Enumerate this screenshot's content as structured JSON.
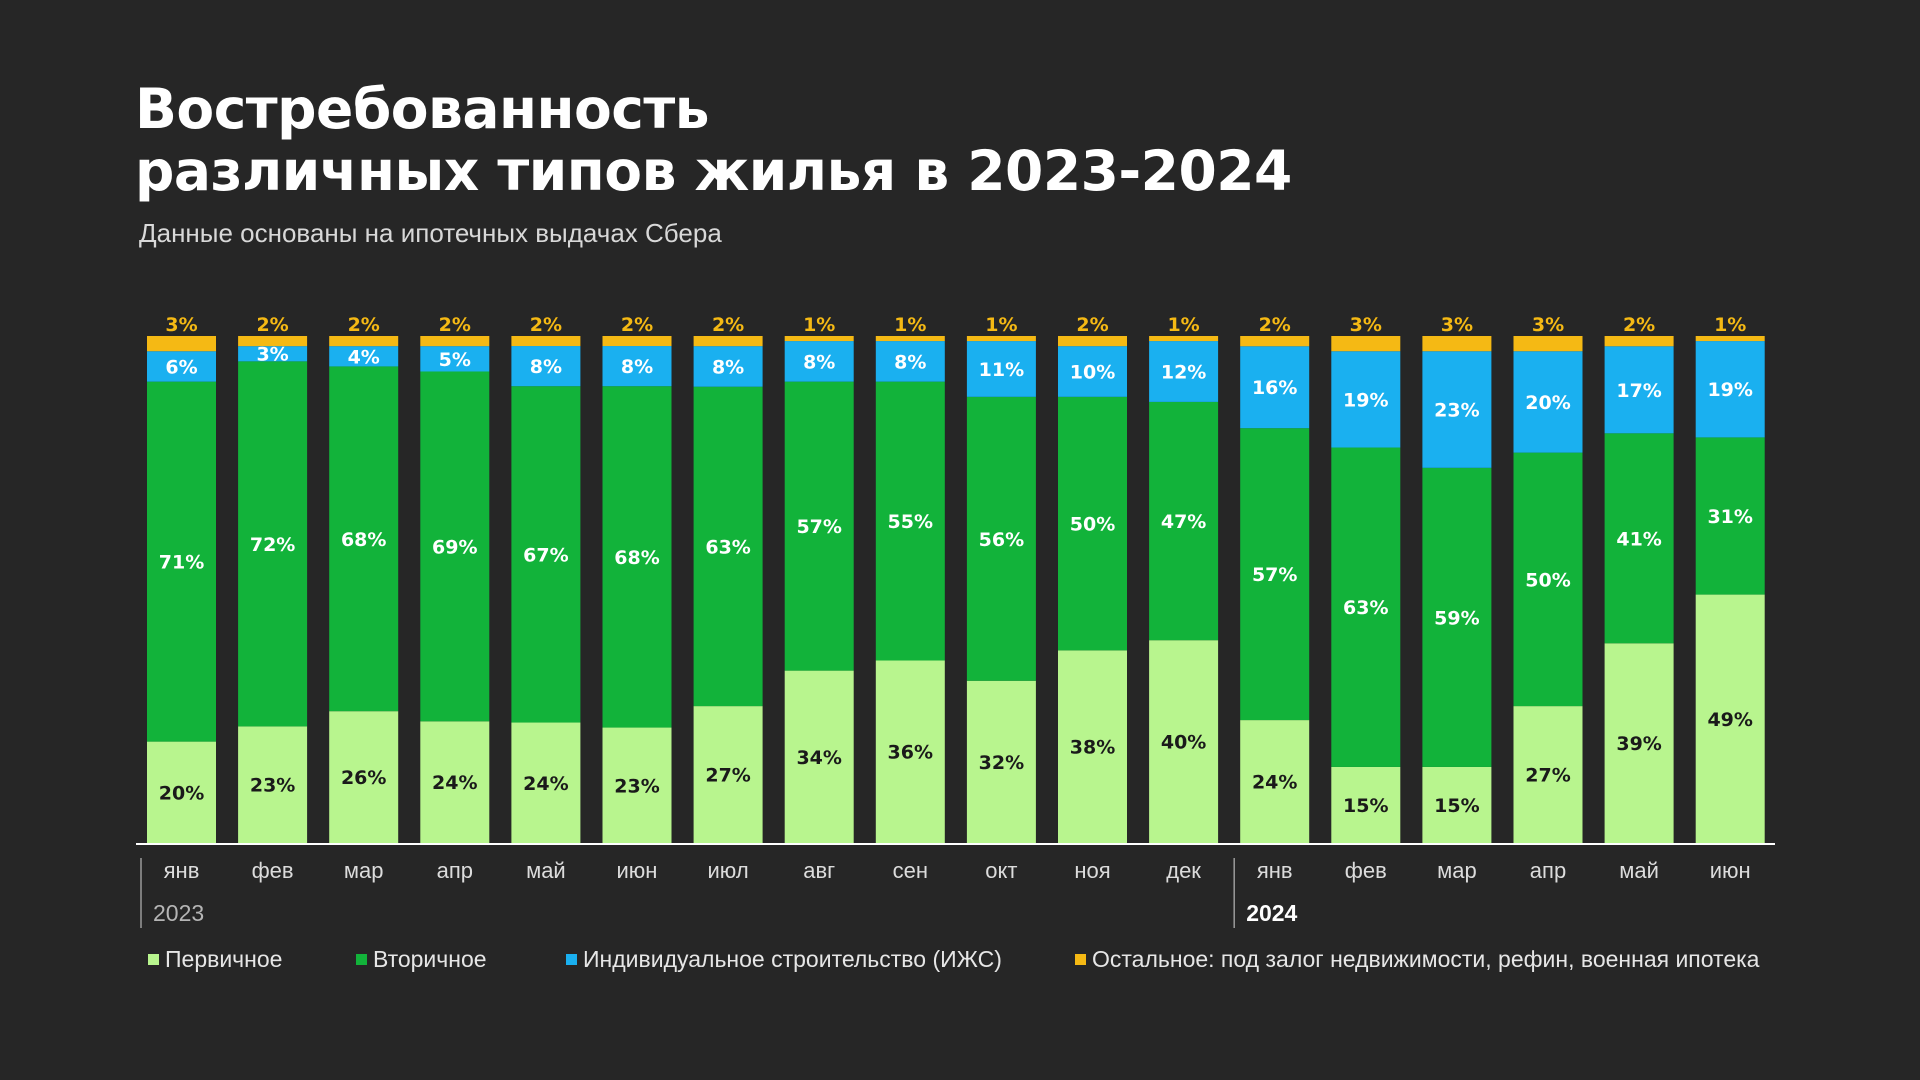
{
  "title_line1": "Востребованность",
  "title_line2": "различных типов жилья в 2023-2024",
  "subtitle": "Данные основаны на ипотечных выдачах Сбера",
  "colors": {
    "background": "#262626",
    "primary": "#b8f58e",
    "secondary": "#12b33a",
    "izhs": "#1ab0f0",
    "other": "#f5b914",
    "axis": "#ffffff",
    "label_dark": "#1a1a1a",
    "label_light": "#ffffff",
    "year2023": "#b5b5b5",
    "year2024": "#ffffff"
  },
  "chart_data": {
    "type": "bar",
    "stacked": true,
    "percent_stacked": true,
    "title": "Востребованность различных типов жилья в 2023-2024",
    "categories": [
      "янв",
      "фев",
      "мар",
      "апр",
      "май",
      "июн",
      "июл",
      "авг",
      "сен",
      "окт",
      "ноя",
      "дек",
      "янв",
      "фев",
      "мар",
      "апр",
      "май",
      "июн"
    ],
    "year_groups": [
      {
        "label": "2023",
        "start_index": 0,
        "count": 12
      },
      {
        "label": "2024",
        "start_index": 12,
        "count": 6
      }
    ],
    "series": [
      {
        "key": "primary",
        "name": "Первичное",
        "values": [
          20,
          23,
          26,
          24,
          24,
          23,
          27,
          34,
          36,
          32,
          38,
          40,
          24,
          15,
          15,
          27,
          39,
          49
        ]
      },
      {
        "key": "secondary",
        "name": "Вторичное",
        "values": [
          71,
          72,
          68,
          69,
          67,
          68,
          63,
          57,
          55,
          56,
          50,
          47,
          57,
          63,
          59,
          50,
          41,
          31
        ]
      },
      {
        "key": "izhs",
        "name": "Индивидуальное строительство (ИЖС)",
        "values": [
          6,
          3,
          4,
          5,
          8,
          8,
          8,
          8,
          8,
          11,
          10,
          12,
          16,
          19,
          23,
          20,
          17,
          19
        ]
      },
      {
        "key": "other",
        "name": "Остальное: под залог недвижимости, рефин, военная ипотека",
        "values": [
          3,
          2,
          2,
          2,
          2,
          2,
          2,
          1,
          1,
          1,
          2,
          1,
          2,
          3,
          3,
          3,
          2,
          1
        ]
      }
    ],
    "unit": "%",
    "ylim": [
      0,
      100
    ],
    "legend_position": "bottom"
  }
}
